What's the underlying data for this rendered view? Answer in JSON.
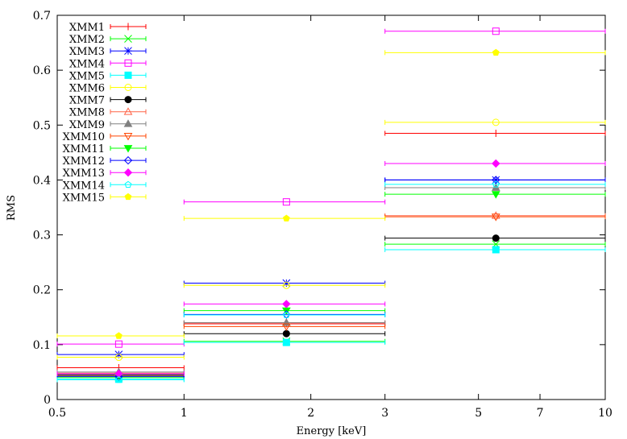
{
  "chart_data": {
    "type": "scatter",
    "title": "",
    "xlabel": "Energy [keV]",
    "ylabel": "RMS",
    "xscale": "log",
    "xlim": [
      0.5,
      10
    ],
    "ylim": [
      0,
      0.7
    ],
    "xticks": [
      {
        "value": 0.5,
        "label": "0.5"
      },
      {
        "value": 1,
        "label": "1"
      },
      {
        "value": 2,
        "label": "2"
      },
      {
        "value": 3,
        "label": "3"
      },
      {
        "value": 5,
        "label": "5"
      },
      {
        "value": 7,
        "label": "7"
      },
      {
        "value": 10,
        "label": "10"
      }
    ],
    "yticks": [
      {
        "value": 0,
        "label": "0"
      },
      {
        "value": 0.1,
        "label": "0.1"
      },
      {
        "value": 0.2,
        "label": "0.2"
      },
      {
        "value": 0.3,
        "label": "0.3"
      },
      {
        "value": 0.4,
        "label": "0.4"
      },
      {
        "value": 0.5,
        "label": "0.5"
      },
      {
        "value": 0.6,
        "label": "0.6"
      },
      {
        "value": 0.7,
        "label": "0.7"
      }
    ],
    "grid": false,
    "legend_position": "top-left",
    "bins": [
      {
        "low": 0.5,
        "center": 0.7,
        "high": 1
      },
      {
        "low": 1,
        "center": 1.75,
        "high": 3
      },
      {
        "low": 3,
        "center": 5.5,
        "high": 10
      }
    ],
    "series": [
      {
        "name": "XMM1",
        "color": "#ff0000",
        "marker": "plus",
        "y": [
          0.058,
          0.138,
          0.485
        ]
      },
      {
        "name": "XMM2",
        "color": "#00ff00",
        "marker": "cross",
        "y": [
          0.04,
          0.106,
          0.283
        ]
      },
      {
        "name": "XMM3",
        "color": "#0000ff",
        "marker": "star",
        "y": [
          0.082,
          0.212,
          0.4
        ]
      },
      {
        "name": "XMM4",
        "color": "#ff00ff",
        "marker": "square-open",
        "y": [
          0.101,
          0.36,
          0.671
        ]
      },
      {
        "name": "XMM5",
        "color": "#00ffff",
        "marker": "square-filled",
        "y": [
          0.037,
          0.104,
          0.273
        ]
      },
      {
        "name": "XMM6",
        "color": "#ffff00",
        "marker": "circle-open",
        "y": [
          0.077,
          0.208,
          0.505
        ]
      },
      {
        "name": "XMM7",
        "color": "#000000",
        "marker": "circle-filled",
        "y": [
          0.045,
          0.12,
          0.294
        ]
      },
      {
        "name": "XMM8",
        "color": "#ff6347",
        "marker": "triangle-open",
        "y": [
          0.048,
          0.14,
          0.335
        ]
      },
      {
        "name": "XMM9",
        "color": "#808080",
        "marker": "triangle-filled",
        "y": [
          0.05,
          0.14,
          0.386
        ]
      },
      {
        "name": "XMM10",
        "color": "#ff4500",
        "marker": "invtriangle-open",
        "y": [
          0.043,
          0.133,
          0.333
        ]
      },
      {
        "name": "XMM11",
        "color": "#00ff00",
        "marker": "invtriangle-filled",
        "y": [
          0.042,
          0.162,
          0.374
        ]
      },
      {
        "name": "XMM12",
        "color": "#0000ff",
        "marker": "diamond-open",
        "y": [
          0.042,
          0.155,
          0.4
        ]
      },
      {
        "name": "XMM13",
        "color": "#ff00ff",
        "marker": "diamond-filled",
        "y": [
          0.047,
          0.174,
          0.43
        ]
      },
      {
        "name": "XMM14",
        "color": "#00ffff",
        "marker": "pentagon-open",
        "y": [
          0.036,
          0.154,
          0.392
        ]
      },
      {
        "name": "XMM15",
        "color": "#ffff00",
        "marker": "pentagon-filled",
        "y": [
          0.116,
          0.33,
          0.632
        ]
      }
    ]
  }
}
